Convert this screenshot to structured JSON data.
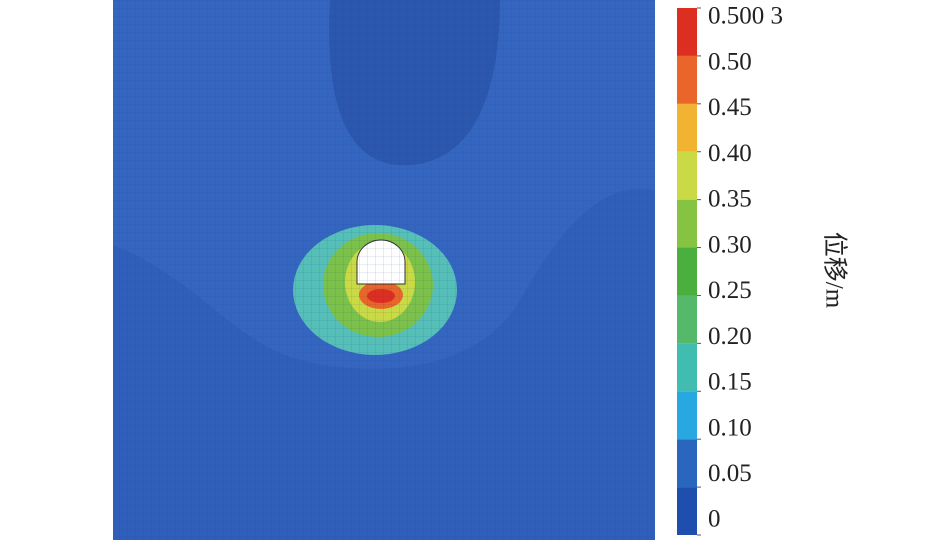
{
  "chart_data": {
    "type": "contour",
    "colorbar_label": "位移/m",
    "colorbar_ticks": [
      0,
      0.05,
      {
        "value": 0.1,
        "label": "0.10"
      },
      0.15,
      {
        "value": 0.2,
        "label": "0.20"
      },
      0.25,
      {
        "value": 0.3,
        "label": "0.30"
      },
      0.35,
      {
        "value": 0.4,
        "label": "0.40"
      },
      0.45,
      {
        "value": 0.5,
        "label": "0.50"
      },
      {
        "value": 0.5003,
        "label": "0.500 3"
      }
    ],
    "colorbar_colors": [
      "#1f4fae",
      "#2a66bd",
      "#27a8e0",
      "#40bdb0",
      "#55b86a",
      "#4aaf3e",
      "#86c340",
      "#c9da44",
      "#f2b232",
      "#e9652a",
      "#dd2e22"
    ]
  }
}
